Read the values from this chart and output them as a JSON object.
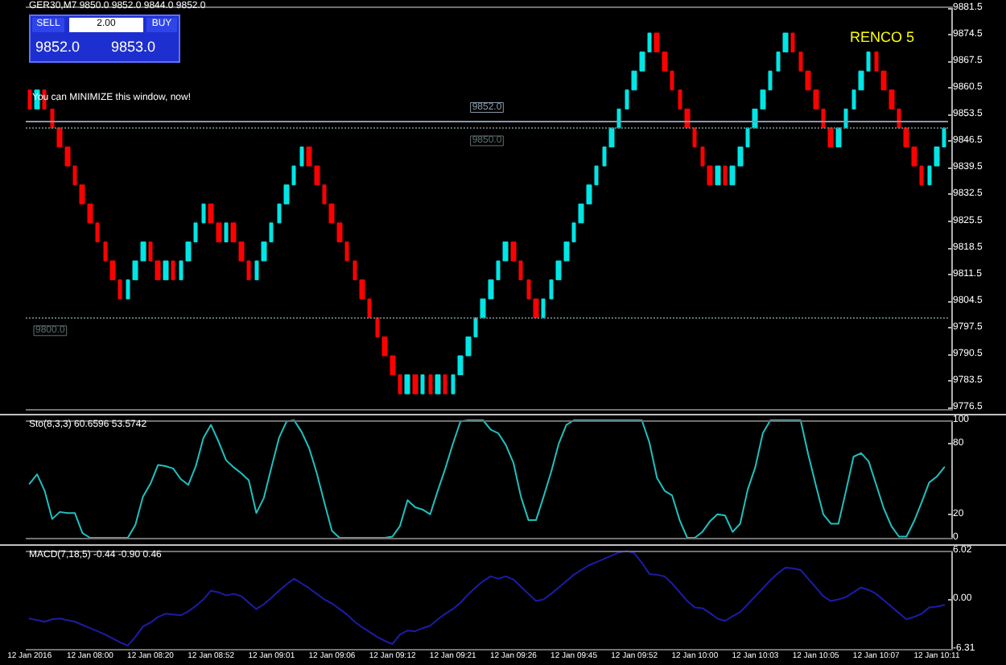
{
  "chart_data": [
    {
      "type": "candlestick",
      "title": "GER30,M7  9850.0 9852.0 9844.0 9852.0",
      "tick_labels": "y",
      "annotations": [
        "SELL",
        "2.00",
        "BUY",
        "9852.0",
        "9853.0",
        "You can MINIMIZE this window, now!",
        "RENCO 5"
      ],
      "categories": [
        null,
        null,
        null,
        null,
        null,
        null,
        null,
        null,
        null,
        null,
        null,
        null,
        null,
        null,
        null,
        null,
        null,
        null,
        null,
        null,
        null,
        null,
        null,
        null,
        null,
        null,
        null,
        null,
        null,
        null,
        null,
        null,
        null,
        null,
        null,
        null,
        null,
        null,
        null,
        null,
        null,
        null,
        null,
        null,
        null,
        null,
        null,
        null,
        null,
        null,
        null,
        null,
        null,
        null,
        null,
        null,
        null,
        null,
        null,
        null,
        null,
        null,
        null,
        null,
        null,
        null,
        null,
        null,
        null,
        null,
        null,
        null,
        null,
        null,
        null,
        null,
        null,
        null,
        null,
        null,
        null,
        null,
        null,
        null,
        null,
        null,
        null,
        null,
        null,
        null,
        null,
        null,
        null,
        null,
        null,
        null,
        null,
        null,
        null,
        null,
        null,
        null,
        null,
        null,
        null,
        null,
        null,
        null,
        null,
        null,
        null,
        null,
        null,
        null,
        null,
        null,
        null,
        null,
        null,
        null,
        null,
        null
      ],
      "ohlc": [
        [
          9860,
          9860,
          9855,
          9855
        ],
        [
          9855,
          9860,
          9855,
          9860
        ],
        [
          9860,
          9860,
          9855,
          9855
        ],
        [
          9855,
          9855,
          9850,
          9850
        ],
        [
          9850,
          9850,
          9845,
          9845
        ],
        [
          9845,
          9845,
          9840,
          9840
        ],
        [
          9840,
          9840,
          9835,
          9835
        ],
        [
          9835,
          9835,
          9830,
          9830
        ],
        [
          9830,
          9830,
          9825,
          9825
        ],
        [
          9825,
          9825,
          9820,
          9820
        ],
        [
          9820,
          9820,
          9815,
          9815
        ],
        [
          9815,
          9815,
          9810,
          9810
        ],
        [
          9810,
          9810,
          9805,
          9805
        ],
        [
          9805,
          9810,
          9805,
          9810
        ],
        [
          9810,
          9815,
          9810,
          9815
        ],
        [
          9815,
          9820,
          9815,
          9820
        ],
        [
          9820,
          9820,
          9815,
          9815
        ],
        [
          9815,
          9815,
          9810,
          9810
        ],
        [
          9810,
          9815,
          9810,
          9815
        ],
        [
          9815,
          9815,
          9810,
          9810
        ],
        [
          9810,
          9815,
          9810,
          9815
        ],
        [
          9815,
          9820,
          9815,
          9820
        ],
        [
          9820,
          9825,
          9820,
          9825
        ],
        [
          9825,
          9830,
          9825,
          9830
        ],
        [
          9830,
          9830,
          9825,
          9825
        ],
        [
          9825,
          9825,
          9820,
          9820
        ],
        [
          9820,
          9825,
          9820,
          9825
        ],
        [
          9825,
          9825,
          9820,
          9820
        ],
        [
          9820,
          9820,
          9815,
          9815
        ],
        [
          9815,
          9815,
          9810,
          9810
        ],
        [
          9810,
          9815,
          9810,
          9815
        ],
        [
          9815,
          9820,
          9815,
          9820
        ],
        [
          9820,
          9825,
          9820,
          9825
        ],
        [
          9825,
          9830,
          9825,
          9830
        ],
        [
          9830,
          9835,
          9830,
          9835
        ],
        [
          9835,
          9840,
          9835,
          9840
        ],
        [
          9840,
          9845,
          9840,
          9845
        ],
        [
          9845,
          9845,
          9840,
          9840
        ],
        [
          9840,
          9840,
          9835,
          9835
        ],
        [
          9835,
          9835,
          9830,
          9830
        ],
        [
          9830,
          9830,
          9825,
          9825
        ],
        [
          9825,
          9825,
          9820,
          9820
        ],
        [
          9820,
          9820,
          9815,
          9815
        ],
        [
          9815,
          9815,
          9810,
          9810
        ],
        [
          9810,
          9810,
          9805,
          9805
        ],
        [
          9805,
          9805,
          9800,
          9800
        ],
        [
          9800,
          9800,
          9795,
          9795
        ],
        [
          9795,
          9795,
          9790,
          9790
        ],
        [
          9790,
          9790,
          9785,
          9785
        ],
        [
          9785,
          9785,
          9780,
          9780
        ],
        [
          9780,
          9785,
          9780,
          9785
        ],
        [
          9785,
          9785,
          9780,
          9780
        ],
        [
          9780,
          9785,
          9780,
          9785
        ],
        [
          9785,
          9785,
          9780,
          9780
        ],
        [
          9780,
          9785,
          9780,
          9785
        ],
        [
          9785,
          9785,
          9780,
          9780
        ],
        [
          9780,
          9785,
          9780,
          9785
        ],
        [
          9785,
          9790,
          9785,
          9790
        ],
        [
          9790,
          9795,
          9790,
          9795
        ],
        [
          9795,
          9800,
          9795,
          9800
        ],
        [
          9800,
          9805,
          9800,
          9805
        ],
        [
          9805,
          9810,
          9805,
          9810
        ],
        [
          9810,
          9815,
          9810,
          9815
        ],
        [
          9815,
          9820,
          9815,
          9820
        ],
        [
          9820,
          9820,
          9815,
          9815
        ],
        [
          9815,
          9815,
          9810,
          9810
        ],
        [
          9810,
          9810,
          9805,
          9805
        ],
        [
          9805,
          9805,
          9800,
          9800
        ],
        [
          9800,
          9805,
          9800,
          9805
        ],
        [
          9805,
          9810,
          9805,
          9810
        ],
        [
          9810,
          9815,
          9810,
          9815
        ],
        [
          9815,
          9820,
          9815,
          9820
        ],
        [
          9820,
          9825,
          9820,
          9825
        ],
        [
          9825,
          9830,
          9825,
          9830
        ],
        [
          9830,
          9835,
          9830,
          9835
        ],
        [
          9835,
          9840,
          9835,
          9840
        ],
        [
          9840,
          9845,
          9840,
          9845
        ],
        [
          9845,
          9850,
          9845,
          9850
        ],
        [
          9850,
          9855,
          9850,
          9855
        ],
        [
          9855,
          9860,
          9855,
          9860
        ],
        [
          9860,
          9865,
          9860,
          9865
        ],
        [
          9865,
          9870,
          9865,
          9870
        ],
        [
          9870,
          9875,
          9870,
          9875
        ],
        [
          9875,
          9875,
          9870,
          9870
        ],
        [
          9870,
          9870,
          9865,
          9865
        ],
        [
          9865,
          9865,
          9860,
          9860
        ],
        [
          9860,
          9860,
          9855,
          9855
        ],
        [
          9855,
          9855,
          9850,
          9850
        ],
        [
          9850,
          9850,
          9845,
          9845
        ],
        [
          9845,
          9845,
          9840,
          9840
        ],
        [
          9840,
          9840,
          9835,
          9835
        ],
        [
          9835,
          9840,
          9835,
          9840
        ],
        [
          9840,
          9840,
          9835,
          9835
        ],
        [
          9835,
          9840,
          9835,
          9840
        ],
        [
          9840,
          9845,
          9840,
          9845
        ],
        [
          9845,
          9850,
          9845,
          9850
        ],
        [
          9850,
          9855,
          9850,
          9855
        ],
        [
          9855,
          9860,
          9855,
          9860
        ],
        [
          9860,
          9865,
          9860,
          9865
        ],
        [
          9865,
          9870,
          9865,
          9870
        ],
        [
          9870,
          9875,
          9870,
          9875
        ],
        [
          9875,
          9875,
          9870,
          9870
        ],
        [
          9870,
          9870,
          9865,
          9865
        ],
        [
          9865,
          9865,
          9860,
          9860
        ],
        [
          9860,
          9860,
          9855,
          9855
        ],
        [
          9855,
          9855,
          9850,
          9850
        ],
        [
          9850,
          9850,
          9845,
          9845
        ],
        [
          9845,
          9850,
          9845,
          9850
        ],
        [
          9850,
          9855,
          9850,
          9855
        ],
        [
          9855,
          9860,
          9855,
          9860
        ],
        [
          9860,
          9865,
          9860,
          9865
        ],
        [
          9865,
          9870,
          9865,
          9870
        ],
        [
          9870,
          9870,
          9865,
          9865
        ],
        [
          9865,
          9865,
          9860,
          9860
        ],
        [
          9860,
          9860,
          9855,
          9855
        ],
        [
          9855,
          9855,
          9850,
          9850
        ],
        [
          9850,
          9850,
          9845,
          9845
        ],
        [
          9845,
          9845,
          9840,
          9840
        ],
        [
          9840,
          9840,
          9835,
          9835
        ],
        [
          9835,
          9840,
          9835,
          9840
        ],
        [
          9840,
          9845,
          9840,
          9845
        ],
        [
          9845,
          9850,
          9845,
          9850
        ]
      ],
      "ylim": [
        9776,
        9882
      ],
      "yticks": [
        9776.5,
        9783.5,
        9790.5,
        9797.5,
        9804.5,
        9811.5,
        9818.5,
        9825.5,
        9832.5,
        9839.5,
        9846.5,
        9853.5,
        9860.5,
        9867.5,
        9874.5,
        9881.5
      ],
      "ref_lines": [
        {
          "axis": "y",
          "value": 9852,
          "label": "9852.0",
          "color": "#8899aa",
          "line_style": "solid"
        },
        {
          "axis": "y",
          "value": 9850,
          "label": "9850.0",
          "color": "#607070",
          "line_style": "dotted"
        },
        {
          "axis": "y",
          "value": 9800,
          "label": "9800.0",
          "color": "#607070",
          "line_style": "dotted"
        }
      ]
    },
    {
      "type": "line",
      "title": "Sto(8,3,3) 60.6596 53.5742",
      "tick_labels": "y",
      "categories": [
        null,
        null,
        null,
        null,
        null,
        null,
        null,
        null,
        null,
        null,
        null,
        null,
        null,
        null,
        null,
        null,
        null,
        null,
        null,
        null,
        null,
        null,
        null,
        null,
        null,
        null,
        null,
        null,
        null,
        null,
        null,
        null,
        null,
        null,
        null,
        null,
        null,
        null,
        null,
        null,
        null,
        null,
        null,
        null,
        null,
        null,
        null,
        null,
        null,
        null,
        null,
        null,
        null,
        null,
        null,
        null,
        null,
        null,
        null,
        null,
        null,
        null,
        null,
        null,
        null,
        null,
        null,
        null,
        null,
        null,
        null,
        null,
        null,
        null,
        null,
        null,
        null,
        null,
        null,
        null,
        null,
        null,
        null,
        null,
        null,
        null,
        null,
        null,
        null,
        null,
        null,
        null,
        null,
        null,
        null,
        null,
        null,
        null,
        null,
        null,
        null,
        null,
        null,
        null,
        null,
        null,
        null,
        null,
        null,
        null,
        null,
        null,
        null,
        null,
        null,
        null,
        null,
        null,
        null,
        null,
        null,
        null
      ],
      "series": [
        {
          "color": "#20c0c0",
          "values": [
            46,
            54,
            40,
            16,
            22,
            21,
            21,
            4,
            0,
            0,
            0,
            0,
            0,
            0,
            11,
            35,
            46,
            62,
            61,
            59,
            50,
            45,
            61,
            85,
            96,
            82,
            66,
            60,
            55,
            49,
            21,
            34,
            60,
            85,
            99,
            100,
            90,
            76,
            55,
            30,
            6,
            0,
            0,
            0,
            0,
            0,
            0,
            0,
            1,
            10,
            32,
            26,
            24,
            20,
            40,
            59,
            80,
            99,
            100,
            100,
            100,
            92,
            89,
            79,
            64,
            35,
            15,
            15,
            35,
            56,
            80,
            96,
            100,
            100,
            100,
            100,
            100,
            100,
            100,
            100,
            100,
            100,
            81,
            51,
            40,
            36,
            15,
            0,
            0,
            5,
            14,
            20,
            19,
            5,
            12,
            41,
            60,
            89,
            100,
            100,
            100,
            100,
            100,
            71,
            45,
            20,
            12,
            12,
            40,
            69,
            72,
            65,
            45,
            25,
            10,
            1,
            1,
            14,
            30,
            47,
            52,
            60
          ]
        }
      ],
      "ylim": [
        0,
        100
      ],
      "yticks": [
        0,
        20,
        80,
        100
      ]
    },
    {
      "type": "line",
      "title": "MACD(7,18,5) -0.44 -0.90 0.46",
      "categories": [
        "12 Jan 2016",
        null,
        null,
        null,
        null,
        null,
        null,
        null,
        "12 Jan 08:00",
        null,
        null,
        null,
        null,
        null,
        null,
        null,
        "12 Jan 08:20",
        null,
        null,
        null,
        null,
        null,
        null,
        null,
        "12 Jan 08:52",
        null,
        null,
        null,
        null,
        null,
        null,
        null,
        "12 Jan 09:01",
        null,
        null,
        null,
        null,
        null,
        null,
        null,
        "12 Jan 09:06",
        null,
        null,
        null,
        null,
        null,
        null,
        null,
        "12 Jan 09:12",
        null,
        null,
        null,
        null,
        null,
        null,
        null,
        "12 Jan 09:21",
        null,
        null,
        null,
        null,
        null,
        null,
        null,
        "12 Jan 09:26",
        null,
        null,
        null,
        null,
        null,
        null,
        null,
        "12 Jan 09:45",
        null,
        null,
        null,
        null,
        null,
        null,
        null,
        "12 Jan 09:52",
        null,
        null,
        null,
        null,
        null,
        null,
        null,
        "12 Jan 10:00",
        null,
        null,
        null,
        null,
        null,
        null,
        null,
        "12 Jan 10:03",
        null,
        null,
        null,
        null,
        null,
        null,
        null,
        "12 Jan 10:05",
        null,
        null,
        null,
        null,
        null,
        null,
        null,
        "12 Jan 10:07",
        null,
        null,
        null,
        null,
        null,
        null,
        null,
        "12 Jan 10:11",
        null
      ],
      "series": [
        {
          "color": "#1c1ca8",
          "values": [
            -2.5,
            -2.7,
            -2.9,
            -2.6,
            -2.5,
            -2.7,
            -2.9,
            -3.3,
            -3.7,
            -4.1,
            -4.5,
            -5.0,
            -5.5,
            -5.9,
            -4.8,
            -3.5,
            -3.0,
            -2.3,
            -1.9,
            -2.0,
            -2.1,
            -1.6,
            -0.9,
            -0.1,
            1.0,
            0.8,
            0.4,
            0.6,
            0.3,
            -0.5,
            -1.3,
            -0.7,
            0.1,
            1.0,
            1.8,
            2.5,
            1.9,
            1.3,
            0.6,
            -0.1,
            -0.6,
            -1.3,
            -2.0,
            -2.9,
            -3.6,
            -4.2,
            -4.8,
            -5.3,
            -5.7,
            -4.5,
            -4.0,
            -4.1,
            -3.7,
            -3.4,
            -2.6,
            -1.9,
            -1.3,
            -0.5,
            0.5,
            1.4,
            2.2,
            2.8,
            2.5,
            2.8,
            2.4,
            1.5,
            0.6,
            -0.3,
            -0.1,
            0.6,
            1.4,
            2.2,
            3.0,
            3.6,
            4.2,
            4.6,
            5.0,
            5.4,
            5.8,
            6.0,
            5.7,
            4.5,
            3.1,
            3.0,
            2.8,
            1.9,
            0.8,
            -0.3,
            -1.1,
            -1.2,
            -1.8,
            -2.5,
            -2.8,
            -2.2,
            -1.7,
            -0.7,
            0.3,
            1.3,
            2.3,
            3.2,
            3.9,
            3.8,
            3.6,
            2.5,
            1.4,
            0.3,
            -0.3,
            -0.1,
            0.2,
            0.8,
            1.4,
            1.1,
            0.6,
            -0.2,
            -1.0,
            -1.8,
            -2.6,
            -2.3,
            -1.9,
            -1.1,
            -1.0,
            -0.8
          ]
        }
      ],
      "ylim": [
        -6.31,
        6.02
      ],
      "yticks": [
        -6.31,
        {
          "value": 0,
          "label": "0.00"
        },
        6.02
      ]
    }
  ]
}
